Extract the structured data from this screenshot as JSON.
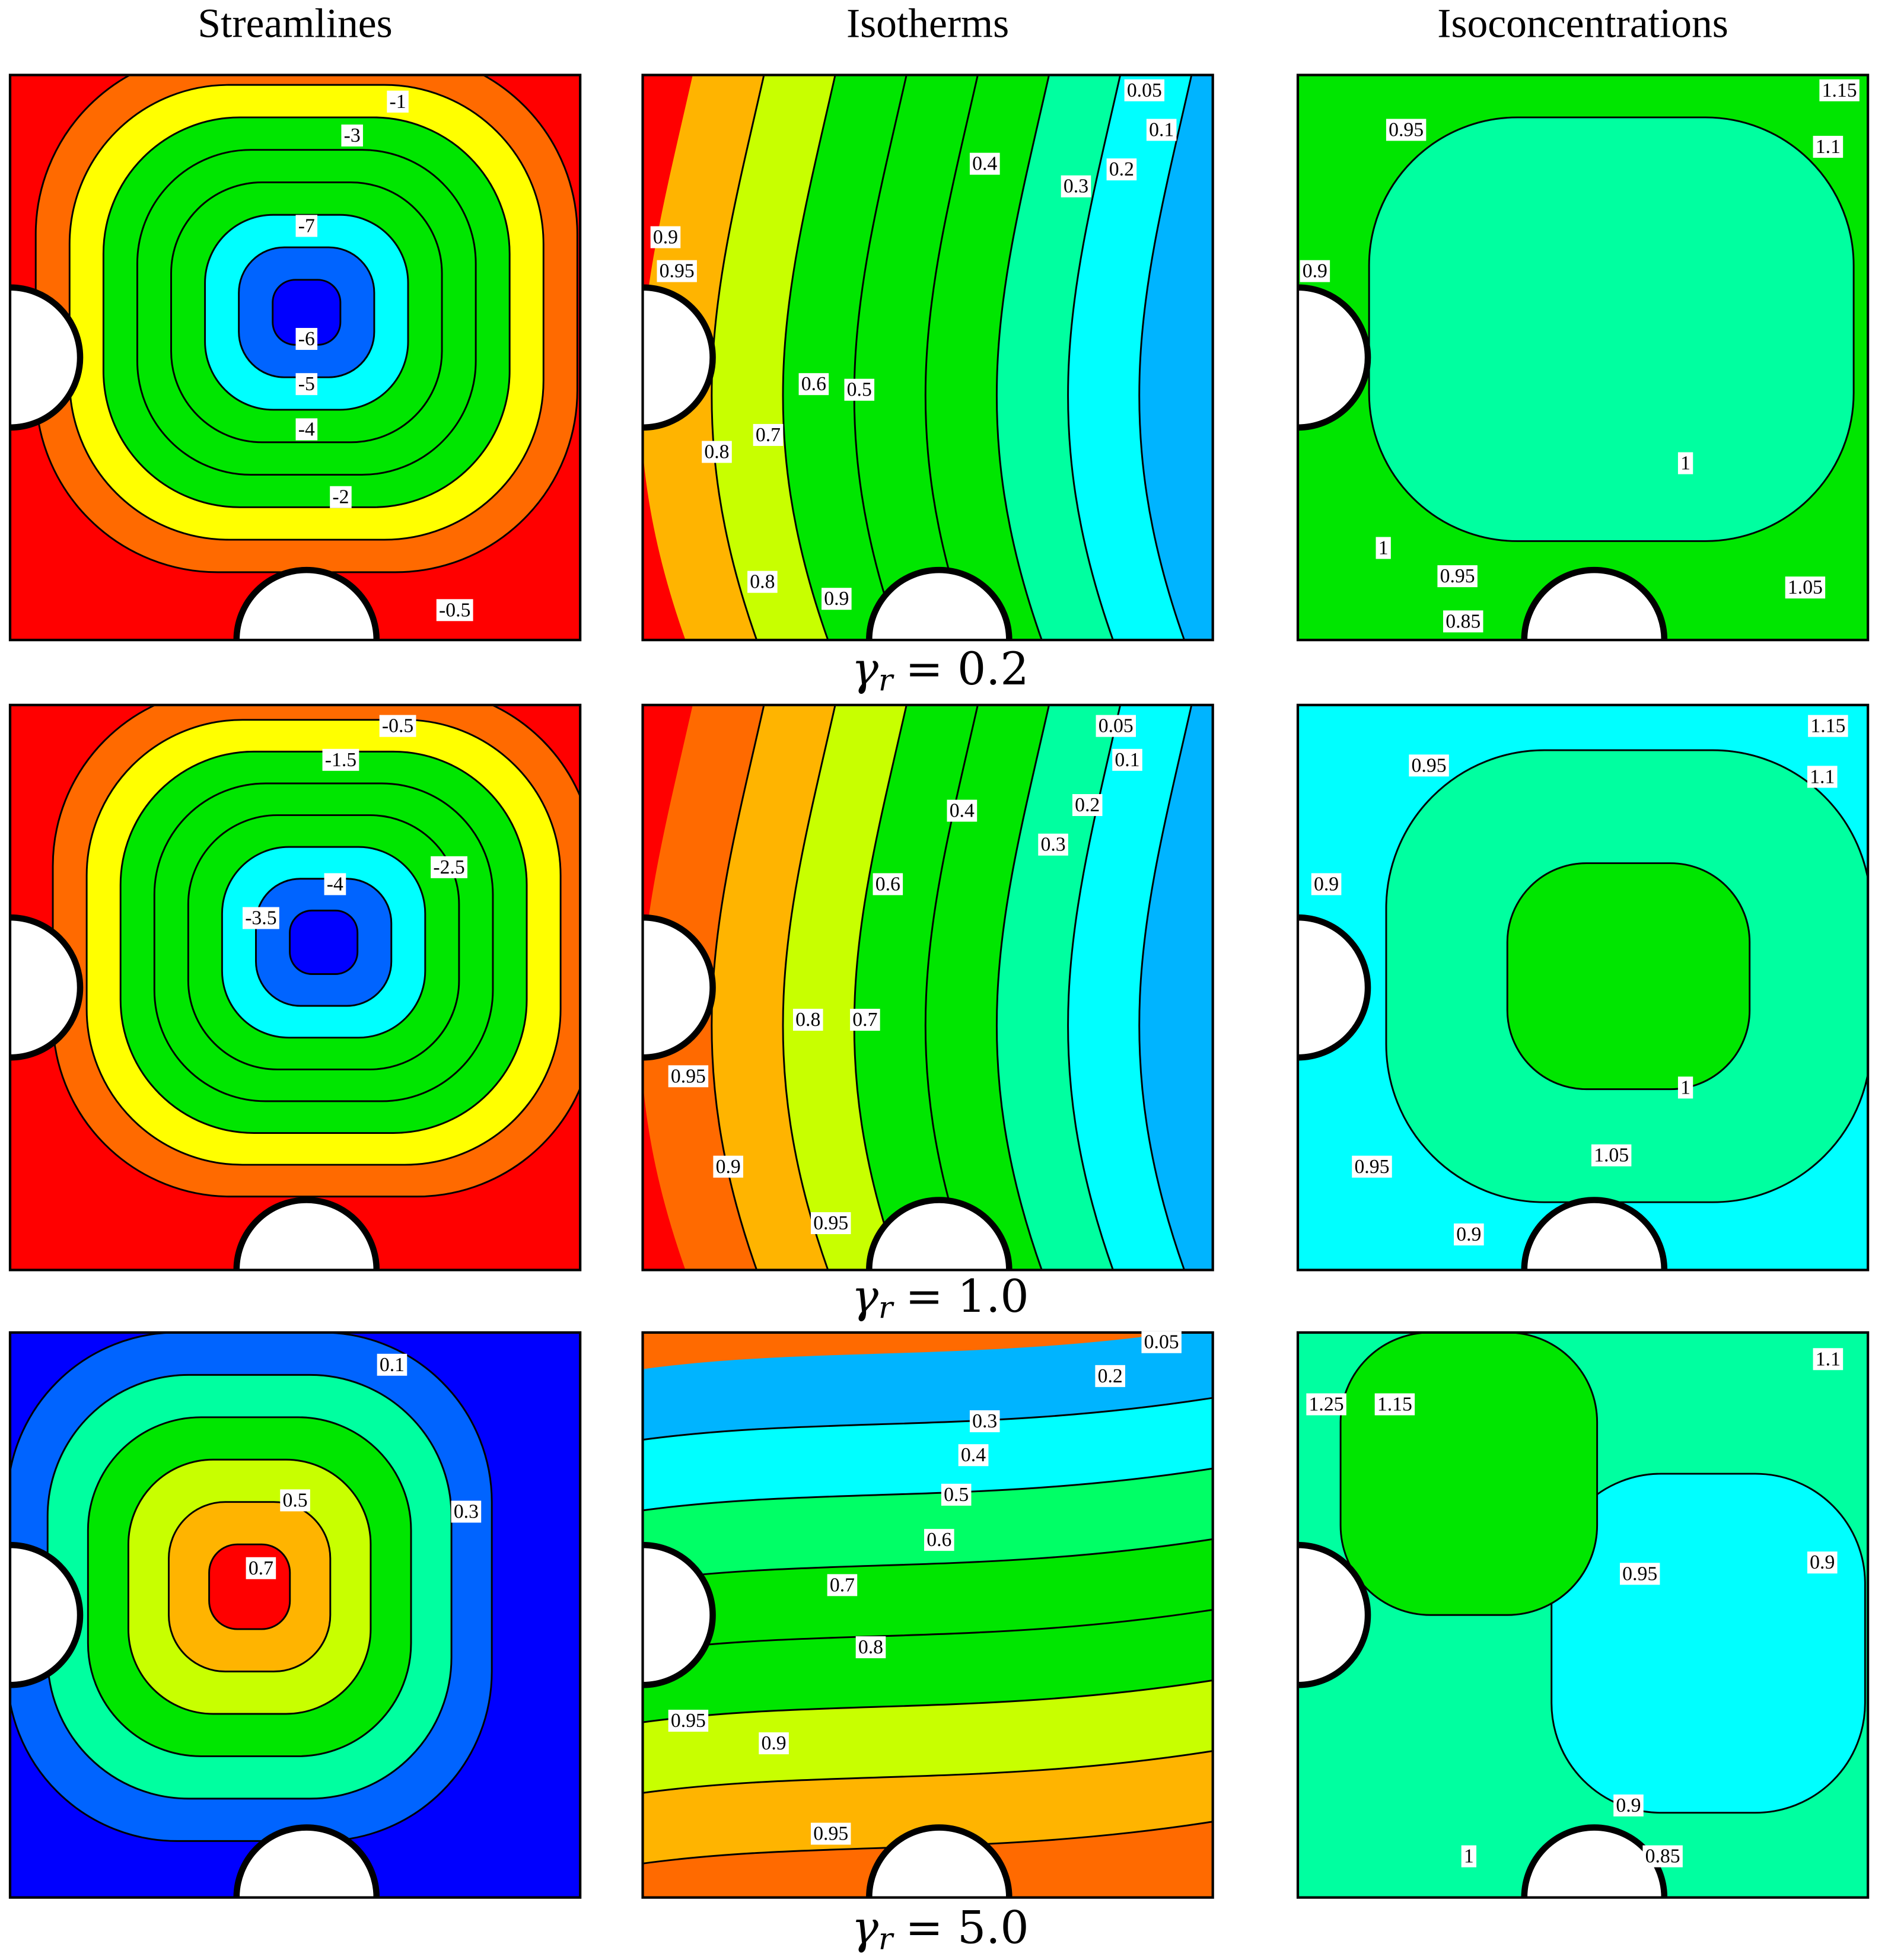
{
  "columns": [
    "Streamlines",
    "Isotherms",
    "Isoconcentrations"
  ],
  "rows": [
    {
      "label": {
        "symbol": "γ",
        "subscript": "r",
        "text": "= 0.2"
      },
      "panels": [
        {
          "labels": [
            "-1",
            "-3",
            "-7",
            "-6",
            "-5",
            "-4",
            "-2",
            "-0.5"
          ]
        },
        {
          "labels": [
            "0.05",
            "0.1",
            "0.4",
            "0.3",
            "0.2",
            "0.9",
            "0.95",
            "0.6",
            "0.5",
            "0.7",
            "0.8",
            "0.8",
            "0.9"
          ]
        },
        {
          "labels": [
            "1.15",
            "0.95",
            "1.1",
            "0.9",
            "1",
            "1",
            "0.95",
            "0.85",
            "1.05"
          ]
        }
      ]
    },
    {
      "label": {
        "symbol": "γ",
        "subscript": "r",
        "text": "= 1.0"
      },
      "panels": [
        {
          "labels": [
            "-0.5",
            "-1.5",
            "-2.5",
            "-4",
            "-3.5"
          ]
        },
        {
          "labels": [
            "0.05",
            "0.1",
            "0.2",
            "0.4",
            "0.3",
            "0.6",
            "0.8",
            "0.7",
            "0.95",
            "0.9",
            "0.95"
          ]
        },
        {
          "labels": [
            "1.15",
            "0.95",
            "1.1",
            "0.9",
            "1",
            "0.95",
            "1.05",
            "0.9"
          ]
        }
      ]
    },
    {
      "label": {
        "symbol": "γ",
        "subscript": "r",
        "text": "= 5.0"
      },
      "panels": [
        {
          "labels": [
            "0.1",
            "0.5",
            "0.3",
            "0.7"
          ]
        },
        {
          "labels": [
            "0.05",
            "0.2",
            "0.3",
            "0.4",
            "0.5",
            "0.6",
            "0.7",
            "0.8",
            "0.95",
            "0.9",
            "0.95"
          ]
        },
        {
          "labels": [
            "1.25",
            "1.15",
            "1.1",
            "0.95",
            "0.9",
            "0.9",
            "1",
            "0.85"
          ]
        }
      ]
    }
  ]
}
